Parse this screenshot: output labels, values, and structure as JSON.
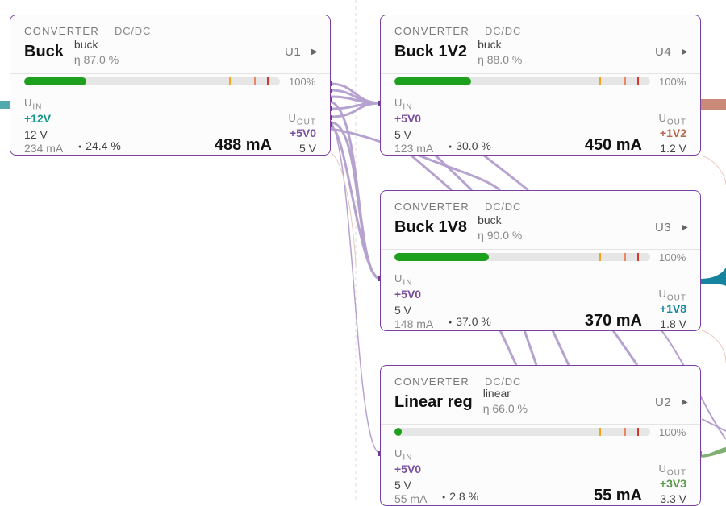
{
  "cards": [
    {
      "category": "CONVERTER",
      "subtype": "DC/DC",
      "name": "Buck",
      "kind": "buck",
      "efficiency": "η 87.0 %",
      "ref": "U1",
      "share": {
        "value": 24.4,
        "label": "24.4 %"
      },
      "scale_max": {
        "value": 100,
        "label": "100%"
      },
      "thresholds": [
        80,
        90,
        95
      ],
      "u_in": {
        "base": "U",
        "sub": "IN"
      },
      "in_net": "+12V",
      "in_color": "#13968c",
      "in_voltage": "12 V",
      "in_current": "234 mA",
      "out_current": "488 mA",
      "u_out": {
        "base": "U",
        "sub": "OUT"
      },
      "out_net": "+5V0",
      "out_color": "#7a4f9e",
      "out_voltage": "5 V"
    },
    {
      "category": "CONVERTER",
      "subtype": "DC/DC",
      "name": "Buck 1V2",
      "kind": "buck",
      "efficiency": "η 88.0 %",
      "ref": "U4",
      "share": {
        "value": 30,
        "label": "30.0 %"
      },
      "scale_max": {
        "value": 100,
        "label": "100%"
      },
      "thresholds": [
        80,
        90,
        95
      ],
      "u_in": {
        "base": "U",
        "sub": "IN"
      },
      "in_net": "+5V0",
      "in_color": "#7a4f9e",
      "in_voltage": "5 V",
      "in_current": "123 mA",
      "out_current": "450 mA",
      "u_out": {
        "base": "U",
        "sub": "OUT"
      },
      "out_net": "+1V2",
      "out_color": "#b5684c",
      "out_voltage": "1.2 V"
    },
    {
      "category": "CONVERTER",
      "subtype": "DC/DC",
      "name": "Buck 1V8",
      "kind": "buck",
      "efficiency": "η 90.0 %",
      "ref": "U3",
      "share": {
        "value": 37,
        "label": "37.0 %"
      },
      "scale_max": {
        "value": 100,
        "label": "100%"
      },
      "thresholds": [
        80,
        90,
        95
      ],
      "u_in": {
        "base": "U",
        "sub": "IN"
      },
      "in_net": "+5V0",
      "in_color": "#7a4f9e",
      "in_voltage": "5 V",
      "in_current": "148 mA",
      "out_current": "370 mA",
      "u_out": {
        "base": "U",
        "sub": "OUT"
      },
      "out_net": "+1V8",
      "out_color": "#16849e",
      "out_voltage": "1.8 V"
    },
    {
      "category": "CONVERTER",
      "subtype": "DC/DC",
      "name": "Linear reg",
      "kind": "linear",
      "efficiency": "η 66.0 %",
      "ref": "U2",
      "share": {
        "value": 2.8,
        "label": "2.8 %"
      },
      "scale_max": {
        "value": 100,
        "label": "100%"
      },
      "thresholds": [
        80,
        90,
        95
      ],
      "u_in": {
        "base": "U",
        "sub": "IN"
      },
      "in_net": "+5V0",
      "in_color": "#7a4f9e",
      "in_voltage": "5 V",
      "in_current": "55 mA",
      "out_current": "55 mA",
      "u_out": {
        "base": "U",
        "sub": "OUT"
      },
      "out_net": "+3V3",
      "out_color": "#5b9a4b",
      "out_voltage": "3.3 V"
    }
  ]
}
